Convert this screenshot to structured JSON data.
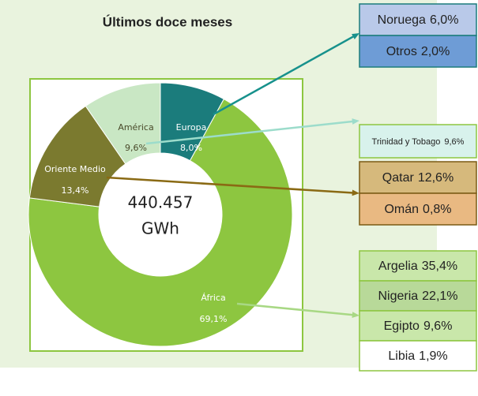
{
  "chart_data": {
    "type": "donut",
    "title": "Últimos doce meses",
    "categories": [
      "Europa",
      "África",
      "Oriente Medio",
      "América"
    ],
    "values": [
      8.0,
      69.1,
      13.4,
      9.6
    ],
    "value_labels": [
      "8,0%",
      "69,1%",
      "13,4%",
      "9,6%"
    ],
    "colors": [
      "#1b7c7c",
      "#8dc640",
      "#7b7a2f",
      "#c9e7c4"
    ],
    "center_value": "440.457",
    "center_unit": "GWh",
    "breakdown": [
      {
        "arrow_color": "#17918c",
        "items": [
          {
            "name": "Noruega",
            "label": "6,0%",
            "color": "#b9c9e9"
          },
          {
            "name": "Otros",
            "label": "2,0%",
            "color": "#6e9cd6"
          }
        ]
      },
      {
        "arrow_color": "#9cdccb",
        "items": [
          {
            "name": "Trinidad y Tobago",
            "label": "9,6%",
            "color": "#d8f2ec"
          }
        ]
      },
      {
        "arrow_color": "#8a6a14",
        "items": [
          {
            "name": "Qatar",
            "label": "12,6%",
            "color": "#d6b97c"
          },
          {
            "name": "Omán",
            "label": "0,8%",
            "color": "#e9b982"
          }
        ]
      },
      {
        "arrow_color": "#a8d884",
        "items": [
          {
            "name": "Argelia",
            "label": "35,4%",
            "color": "#c9e7aa"
          },
          {
            "name": "Nigeria",
            "label": "22,1%",
            "color": "#b8d999"
          },
          {
            "name": "Egipto",
            "label": "9,6%",
            "color": "#c9e7aa"
          },
          {
            "name": "Libia",
            "label": "1,9%",
            "color": "#ffffff"
          }
        ]
      }
    ]
  }
}
